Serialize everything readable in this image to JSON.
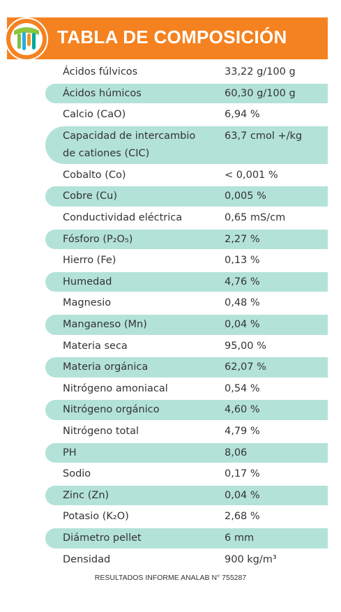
{
  "header": {
    "title": "TABLA DE COMPOSICIÓN"
  },
  "table": {
    "rows": [
      {
        "label": "Ácidos fúlvicos",
        "value": "33,22 g/100 g"
      },
      {
        "label": "Ácidos húmicos",
        "value": "60,30 g/100 g"
      },
      {
        "label": "Calcio (CaO)",
        "value": "6,94 %"
      },
      {
        "label": [
          "Capacidad de intercambio",
          "de cationes (CIC)"
        ],
        "value": "63,7 cmol +/kg"
      },
      {
        "label": "Cobalto (Co)",
        "value": "< 0,001 %"
      },
      {
        "label": "Cobre (Cu)",
        "value": "0,005 %"
      },
      {
        "label": "Conductividad eléctrica",
        "value": "0,65 mS/cm"
      },
      {
        "label": "Fósforo (P₂O₅)",
        "value": "2,27 %"
      },
      {
        "label": "Hierro (Fe)",
        "value": "0,13 %"
      },
      {
        "label": "Humedad",
        "value": "4,76 %"
      },
      {
        "label": "Magnesio",
        "value": "0,48 %"
      },
      {
        "label": "Manganeso (Mn)",
        "value": "0,04 %"
      },
      {
        "label": "Materia seca",
        "value": "95,00 %"
      },
      {
        "label": "Materia orgánica",
        "value": "62,07 %"
      },
      {
        "label": "Nitrógeno amoniacal",
        "value": "0,54 %"
      },
      {
        "label": "Nitrógeno orgánico",
        "value": "4,60 %"
      },
      {
        "label": "Nitrógeno total",
        "value": "4,79 %"
      },
      {
        "label": "PH",
        "value": "8,06"
      },
      {
        "label": "Sodio",
        "value": "0,17 %"
      },
      {
        "label": "Zinc (Zn)",
        "value": "0,04 %"
      },
      {
        "label": "Potasio (K₂O)",
        "value": "2,68 %"
      },
      {
        "label": "Diámetro pellet",
        "value": "6 mm"
      },
      {
        "label": "Densidad",
        "value": "900 kg/m³"
      }
    ]
  },
  "footer": {
    "note": "RESULTADOS INFORME ANALAB N° 755287"
  }
}
